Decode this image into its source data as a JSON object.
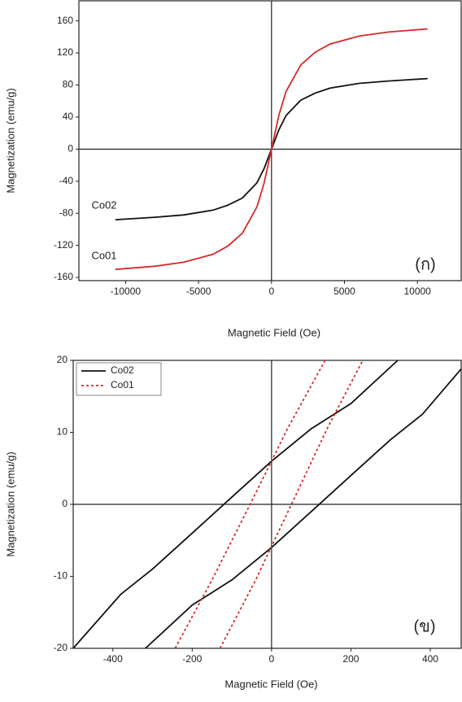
{
  "chart_data": [
    {
      "type": "line",
      "x_label": "Magnetic Field (Oe)",
      "y_label": "Magnetization (emu/g)",
      "x": [
        -10700,
        -8000,
        -6000,
        -4000,
        -3000,
        -2000,
        -1000,
        -500,
        0,
        500,
        1000,
        2000,
        3000,
        4000,
        6000,
        8000,
        10700
      ],
      "series": [
        {
          "name": "Co02",
          "color": "#111111",
          "values": [
            -88,
            -85,
            -82,
            -76,
            -70,
            -61,
            -42,
            -24,
            0,
            24,
            42,
            61,
            70,
            76,
            82,
            85,
            88
          ]
        },
        {
          "name": "Co01",
          "color": "#d42a2a",
          "values": [
            -150,
            -146,
            -141,
            -131,
            -121,
            -105,
            -72,
            -42,
            0,
            42,
            72,
            105,
            121,
            131,
            141,
            146,
            150
          ]
        }
      ],
      "annotations": [
        "Co02",
        "Co01",
        "(ก)"
      ],
      "xlim": [
        -13200,
        13000
      ],
      "ylim": [
        -164,
        185
      ],
      "xticks": [
        -10000,
        -5000,
        0,
        5000,
        10000
      ],
      "yticks": [
        -160,
        -120,
        -80,
        -40,
        0,
        40,
        80,
        120,
        160
      ]
    },
    {
      "type": "line",
      "x_label": "Magnetic Field (Oe)",
      "y_label": "Magnetization (emu/g)",
      "series": [
        {
          "name": "Co02",
          "color": "#111111",
          "dash": "none",
          "x": [
            318,
            200,
            100,
            0,
            -100,
            -200,
            -300,
            -380,
            -500,
            null,
            -318,
            -200,
            -100,
            0,
            100,
            200,
            300,
            380,
            478
          ],
          "values": [
            20,
            14,
            10.5,
            6,
            1,
            -4,
            -9,
            -12.5,
            -20,
            null,
            -20,
            -14,
            -10.5,
            -6,
            -1,
            4,
            9,
            12.5,
            18.8
          ]
        },
        {
          "name": "Co01",
          "color": "#d42a2a",
          "dash": "3,3",
          "x": [
            135,
            40,
            -54,
            -150,
            -243,
            null,
            -130,
            -40,
            50,
            140,
            230
          ],
          "values": [
            20,
            10.5,
            0,
            -10.5,
            -20,
            null,
            -20,
            -10.5,
            0,
            10.5,
            20
          ]
        }
      ],
      "annotations": [
        "(ข)"
      ],
      "legend": "upper left",
      "xlim": [
        -500,
        478
      ],
      "ylim": [
        -20,
        20
      ],
      "xticks": [
        -400,
        -200,
        0,
        200,
        400
      ],
      "yticks": [
        -20,
        -10,
        0,
        10,
        20
      ]
    }
  ]
}
